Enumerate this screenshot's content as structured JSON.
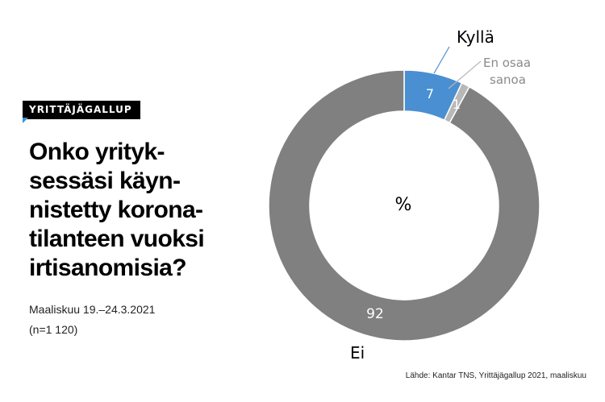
{
  "badge": "YRITTÄJÄGALLUP",
  "title": "Onko yrityk-\nsessäsi käyn-\nnistetty korona-\ntilanteen vuoksi\nirtisanomisia?",
  "date": "Maaliskuu 19.–24.3.2021",
  "sample": "(n=1 120)",
  "source": "Lähde: Kantar TNS, Yrittäjägallup 2021, maaliskuu",
  "colors": {
    "blue": "#4a8fd1",
    "lightgray": "#b8b8b8",
    "gray": "#808080",
    "badge_accent": "#3a8fd6"
  },
  "chart_data": {
    "type": "pie",
    "style": "donut",
    "center_label": "%",
    "categories": [
      "Kyllä",
      "En osaa sanoa",
      "Ei"
    ],
    "values": [
      7,
      1,
      92
    ],
    "value_labels": [
      "7",
      "1",
      "92"
    ],
    "legend_labels": {
      "kylla": "Kyllä",
      "en_osaa_line1": "En osaa",
      "en_osaa_line2": "sanoa",
      "ei": "Ei"
    }
  }
}
